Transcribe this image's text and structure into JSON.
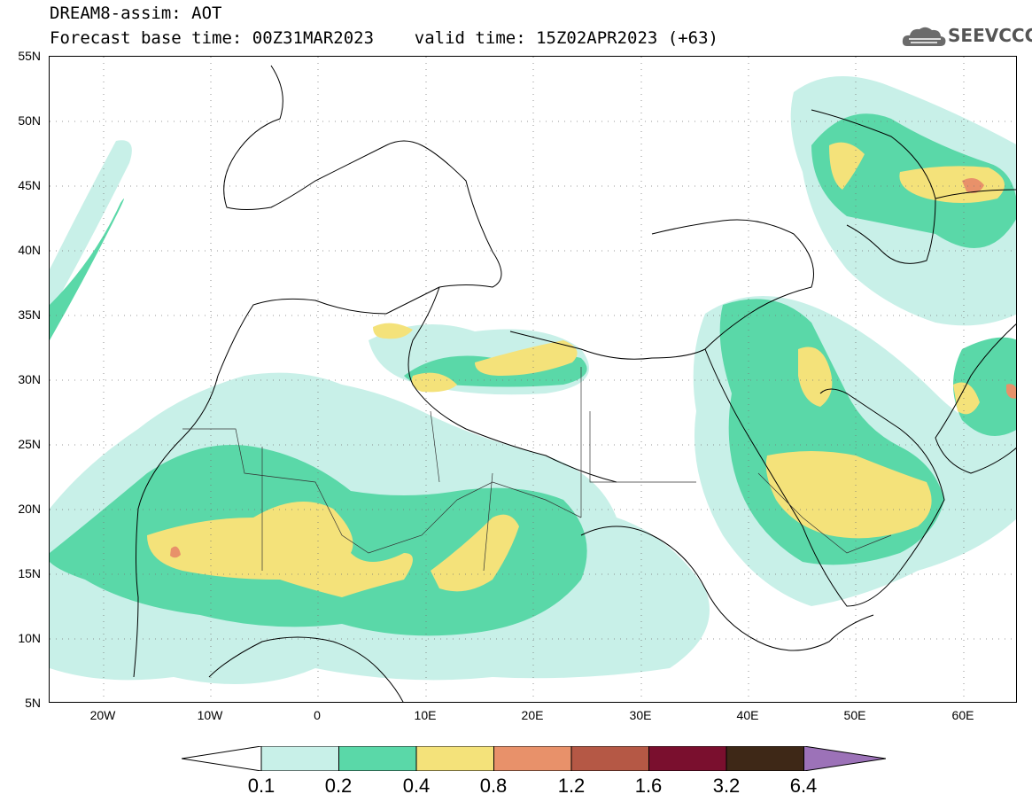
{
  "header": {
    "line1": "DREAM8-assim: AOT",
    "line2": "Forecast base time: 00Z31MAR2023    valid time: 15Z02APR2023 (+63)",
    "logo_text": "SEEVCCC"
  },
  "map": {
    "lon_range": [
      -25,
      65
    ],
    "lat_range": [
      5,
      55
    ],
    "lat_labels": [
      "55N",
      "50N",
      "45N",
      "40N",
      "35N",
      "30N",
      "25N",
      "20N",
      "15N",
      "10N",
      "5N"
    ],
    "lon_labels": [
      "20W",
      "10W",
      "0",
      "10E",
      "20E",
      "30E",
      "40E",
      "50E",
      "60E"
    ],
    "grid": "dotted every 5 degrees"
  },
  "legend": {
    "labels": [
      "0.1",
      "0.2",
      "0.4",
      "0.8",
      "1.2",
      "1.6",
      "3.2",
      "6.4"
    ],
    "colors": [
      "#c8f0e8",
      "#5ad8a8",
      "#f4e27a",
      "#e8916a",
      "#b55845",
      "#7a0f2e",
      "#3e2817",
      "#9c72b8"
    ],
    "under_color": "#ffffff"
  }
}
